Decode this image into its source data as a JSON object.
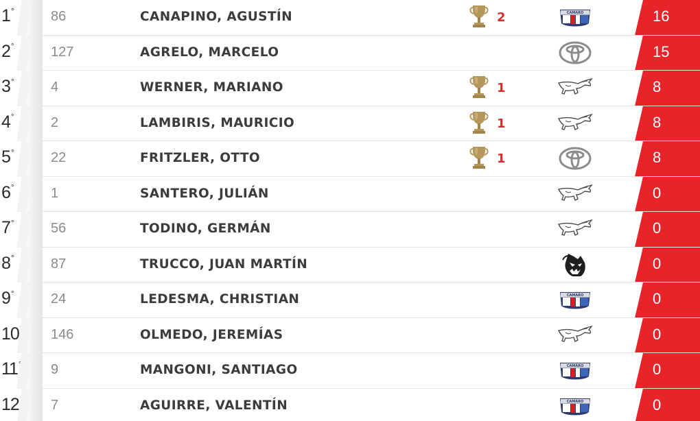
{
  "standings": [
    {
      "pos": "1",
      "pos_suffix": "°",
      "number": "86",
      "name": "CANAPINO, AGUSTÍN",
      "wins": "2",
      "brand": "camaro-icon",
      "points": "16"
    },
    {
      "pos": "2",
      "pos_suffix": "°",
      "number": "127",
      "name": "AGRELO, MARCELO",
      "wins": null,
      "brand": "toyota-icon",
      "points": "15"
    },
    {
      "pos": "3",
      "pos_suffix": "°",
      "number": "4",
      "name": "WERNER, MARIANO",
      "wins": "1",
      "brand": "mustang-icon",
      "points": "8"
    },
    {
      "pos": "4",
      "pos_suffix": "°",
      "number": "2",
      "name": "LAMBIRIS, MAURICIO",
      "wins": "1",
      "brand": "mustang-icon",
      "points": "8"
    },
    {
      "pos": "5",
      "pos_suffix": "°",
      "number": "22",
      "name": "FRITZLER, OTTO",
      "wins": "1",
      "brand": "toyota-icon",
      "points": "8"
    },
    {
      "pos": "6",
      "pos_suffix": "°",
      "number": "1",
      "name": "SANTERO, JULIÁN",
      "wins": null,
      "brand": "mustang-icon",
      "points": "0"
    },
    {
      "pos": "7",
      "pos_suffix": "°",
      "number": "56",
      "name": "TODINO, GERMÁN",
      "wins": null,
      "brand": "mustang-icon",
      "points": "0"
    },
    {
      "pos": "8",
      "pos_suffix": "°",
      "number": "87",
      "name": "TRUCCO, JUAN MARTÍN",
      "wins": null,
      "brand": "dodge-hellcat-icon",
      "points": "0"
    },
    {
      "pos": "9",
      "pos_suffix": "°",
      "number": "24",
      "name": "LEDESMA, CHRISTIAN",
      "wins": null,
      "brand": "camaro-icon",
      "points": "0"
    },
    {
      "pos": "10",
      "pos_suffix": "°",
      "number": "146",
      "name": "OLMEDO, JEREMÍAS",
      "wins": null,
      "brand": "mustang-icon",
      "points": "0"
    },
    {
      "pos": "11",
      "pos_suffix": "°",
      "number": "9",
      "name": "MANGONI, SANTIAGO",
      "wins": null,
      "brand": "camaro-icon",
      "points": "0"
    },
    {
      "pos": "12",
      "pos_suffix": "°",
      "number": "7",
      "name": "AGUIRRE, VALENTÍN",
      "wins": null,
      "brand": "camaro-icon",
      "points": "0"
    }
  ],
  "colors": {
    "points_bg": "#e8232a",
    "wins_text": "#d62d2d",
    "trophy": "#b5975b"
  }
}
